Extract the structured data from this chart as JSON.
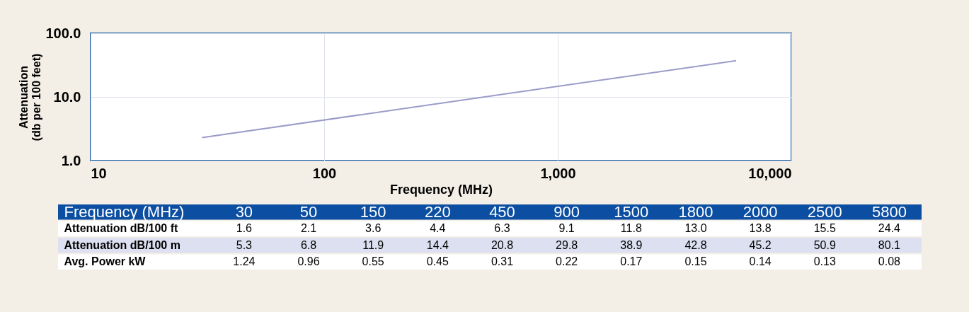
{
  "chart_data": [
    {
      "type": "line",
      "xlabel": "Frequency (MHz)",
      "ylabel": "Attenuation (db per 100 feet)",
      "log": "xy",
      "grid": true,
      "xlim": [
        10,
        10000
      ],
      "xticks": [
        10,
        100,
        {
          "value": 1000,
          "label": "1,000"
        },
        {
          "value": 10000,
          "label": "10,000"
        }
      ],
      "ylim": [
        1,
        100
      ],
      "yticks": [
        {
          "value": 1,
          "label": "1.0"
        },
        {
          "value": 10,
          "label": "10.0"
        },
        {
          "value": 100,
          "label": "100.0"
        }
      ],
      "series": [
        {
          "color": "#9a9cc8",
          "x": [
            30,
            5800
          ],
          "values": [
            2.3,
            37
          ]
        }
      ]
    },
    {
      "type": "other",
      "xlabel": "Frequency (MHz)",
      "categories": [
        "30",
        "50",
        "150",
        "220",
        "450",
        "900",
        "1500",
        "1800",
        "2000",
        "2500",
        "5800"
      ],
      "data_labels": true,
      "series": [
        {
          "name": "Attenuation dB/100 ft",
          "values": [
            1.6,
            2.1,
            3.6,
            4.4,
            6.3,
            9.1,
            11.8,
            13.0,
            13.8,
            15.5,
            24.4
          ],
          "value_labels": [
            "1.6",
            "2.1",
            "3.6",
            "4.4",
            "6.3",
            "9.1",
            "11.8",
            "13.0",
            "13.8",
            "15.5",
            "24.4"
          ]
        },
        {
          "name": "Attenuation dB/100 m",
          "values": [
            5.3,
            6.8,
            11.9,
            14.4,
            20.8,
            29.8,
            38.9,
            42.8,
            45.2,
            50.9,
            80.1
          ],
          "value_labels": [
            "5.3",
            "6.8",
            "11.9",
            "14.4",
            "20.8",
            "29.8",
            "38.9",
            "42.8",
            "45.2",
            "50.9",
            "80.1"
          ]
        },
        {
          "name": "Avg. Power kW",
          "values": [
            1.24,
            0.96,
            0.55,
            0.45,
            0.31,
            0.22,
            0.17,
            0.15,
            0.14,
            0.13,
            0.08
          ],
          "value_labels": [
            "1.24",
            "0.96",
            "0.55",
            "0.45",
            "0.31",
            "0.22",
            "0.17",
            "0.15",
            "0.14",
            "0.13",
            "0.08"
          ]
        }
      ]
    }
  ]
}
